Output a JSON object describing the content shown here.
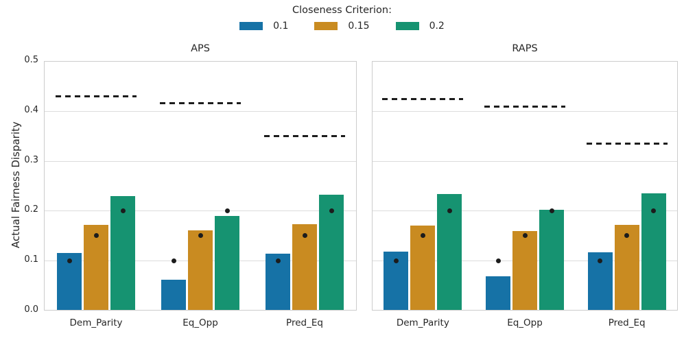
{
  "legend": {
    "title": "Closeness Criterion:",
    "items": [
      {
        "label": "0.1",
        "color": "#1672A6"
      },
      {
        "label": "0.15",
        "color": "#C98B21"
      },
      {
        "label": "0.2",
        "color": "#169371"
      }
    ]
  },
  "axes": {
    "ylabel": "Actual Fairness Disparity"
  },
  "colors": {
    "bar_blue": "#1672A6",
    "bar_gold": "#C98B21",
    "bar_green": "#169371",
    "marker_black": "#1c1c1c",
    "grid": "#dcdcdc",
    "spine": "#cccccc",
    "text": "#262626"
  },
  "chart_data": {
    "type": "bar",
    "title": "",
    "xlabel": "",
    "ylabel": "Actual Fairness Disparity",
    "ylim": [
      0.0,
      0.5
    ],
    "yticks": [
      0.0,
      0.1,
      0.2,
      0.3,
      0.4,
      0.5
    ],
    "grid": true,
    "legend_title": "Closeness Criterion:",
    "legend_position": "top-center",
    "categories": [
      "Dem_Parity",
      "Eq_Opp",
      "Pred_Eq"
    ],
    "marker_meaning": "black dot = closeness criterion target disparity",
    "dashed_line_meaning": "black dashed segment = upper disparity reference per group",
    "panels": [
      {
        "title": "APS",
        "series": [
          {
            "name": "0.1",
            "color": "#1672A6",
            "target": 0.1,
            "values": [
              0.116,
              0.062,
              0.114
            ]
          },
          {
            "name": "0.15",
            "color": "#C98B21",
            "target": 0.15,
            "values": [
              0.172,
              0.161,
              0.173
            ]
          },
          {
            "name": "0.2",
            "color": "#169371",
            "target": 0.2,
            "values": [
              0.229,
              0.189,
              0.232
            ]
          }
        ],
        "dashed_lines": [
          0.429,
          0.415,
          0.349
        ]
      },
      {
        "title": "RAPS",
        "series": [
          {
            "name": "0.1",
            "color": "#1672A6",
            "target": 0.1,
            "values": [
              0.118,
              0.069,
              0.117
            ]
          },
          {
            "name": "0.15",
            "color": "#C98B21",
            "target": 0.15,
            "values": [
              0.17,
              0.159,
              0.172
            ]
          },
          {
            "name": "0.2",
            "color": "#169371",
            "target": 0.2,
            "values": [
              0.233,
              0.202,
              0.235
            ]
          }
        ],
        "dashed_lines": [
          0.424,
          0.408,
          0.335
        ]
      }
    ]
  }
}
